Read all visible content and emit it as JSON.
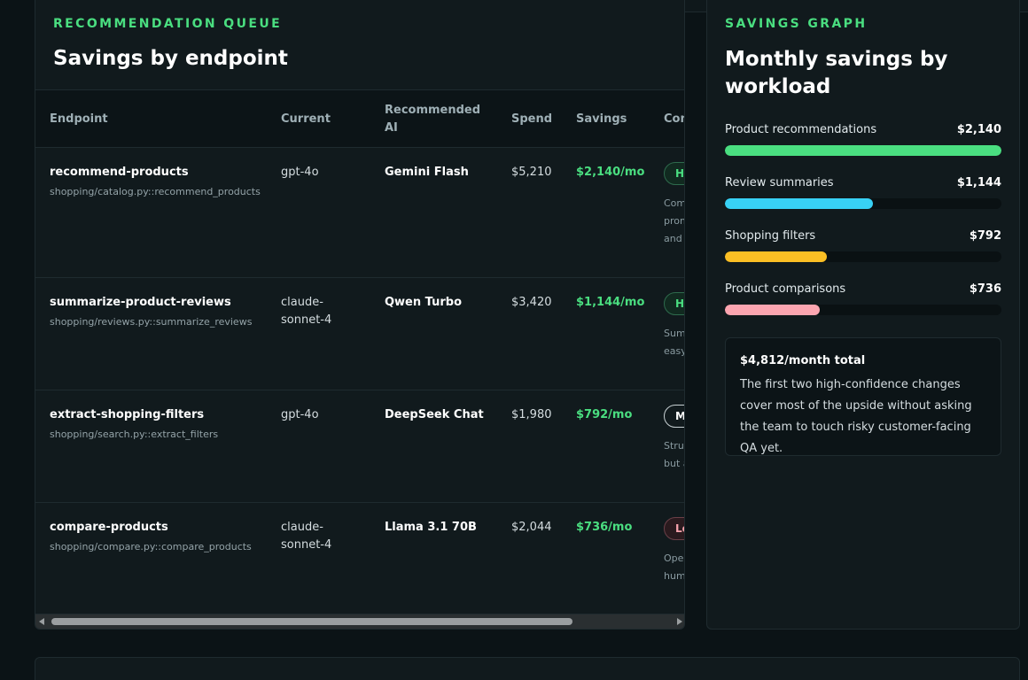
{
  "queue": {
    "eyebrow": "RECOMMENDATION QUEUE",
    "title": "Savings by endpoint",
    "columns": [
      "Endpoint",
      "Current",
      "Recommended AI",
      "Spend",
      "Savings",
      "Confidence"
    ],
    "rows": [
      {
        "endpoint": "recommend-products",
        "path": "shopping/catalog.py::recommend_products",
        "current": "gpt-4o",
        "recommended": "Gemini Flash",
        "spend": "$5,210",
        "savings": "$2,140/mo",
        "confidence": "High",
        "confidence_level": "high",
        "note": "Compare product ranking prompts, structured fields and candidates."
      },
      {
        "endpoint": "summarize-product-reviews",
        "path": "shopping/reviews.py::summarize_reviews",
        "current": "claude-sonnet-4",
        "recommended": "Qwen Turbo",
        "spend": "$3,420",
        "savings": "$1,144/mo",
        "confidence": "High",
        "confidence_level": "high",
        "note": "Summaries are short and easy to replay."
      },
      {
        "endpoint": "extract-shopping-filters",
        "path": "shopping/search.py::extract_filters",
        "current": "gpt-4o",
        "recommended": "DeepSeek Chat",
        "spend": "$1,980",
        "savings": "$792/mo",
        "confidence": "Medium",
        "confidence_level": "medium",
        "note": "Structured output is safe, but ambiguity needs QA."
      },
      {
        "endpoint": "compare-products",
        "path": "shopping/compare.py::compare_products",
        "current": "claude-sonnet-4",
        "recommended": "Llama 3.1 70B",
        "spend": "$2,044",
        "savings": "$736/mo",
        "confidence": "Low",
        "confidence_level": "low",
        "note": "Open-ended output needs human review before rollout."
      }
    ]
  },
  "graph": {
    "eyebrow": "SAVINGS GRAPH",
    "title": "Monthly savings by workload",
    "max": 2140,
    "bars": [
      {
        "label": "Product recommendations",
        "value": "$2,140",
        "amount": 2140,
        "color": "#4ade80"
      },
      {
        "label": "Review summaries",
        "value": "$1,144",
        "amount": 1144,
        "color": "#38d1f5"
      },
      {
        "label": "Shopping filters",
        "value": "$792",
        "amount": 792,
        "color": "#fbbf24"
      },
      {
        "label": "Product comparisons",
        "value": "$736",
        "amount": 736,
        "color": "#fca5b0"
      }
    ],
    "summary_title": "$4,812/month total",
    "summary_body": "The first two high-confidence changes cover most of the upside without asking the team to touch risky customer-facing QA yet."
  }
}
